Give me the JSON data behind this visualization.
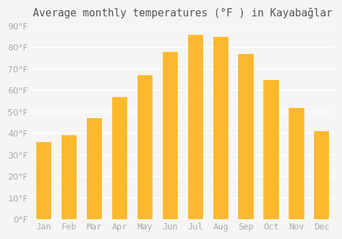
{
  "title": "Average monthly temperatures (°F ) in Kayabağlar",
  "months": [
    "Jan",
    "Feb",
    "Mar",
    "Apr",
    "May",
    "Jun",
    "Jul",
    "Aug",
    "Sep",
    "Oct",
    "Nov",
    "Dec"
  ],
  "values": [
    36,
    39,
    47,
    57,
    67,
    78,
    86,
    85,
    77,
    65,
    52,
    41
  ],
  "bar_color_main": "#FDB92E",
  "bar_color_edge": "#F5A623",
  "background_color": "#F5F5F5",
  "grid_color": "#FFFFFF",
  "ylim": [
    0,
    90
  ],
  "yticks": [
    0,
    10,
    20,
    30,
    40,
    50,
    60,
    70,
    80,
    90
  ],
  "title_fontsize": 11,
  "tick_fontsize": 9,
  "tick_color": "#AAAAAA"
}
